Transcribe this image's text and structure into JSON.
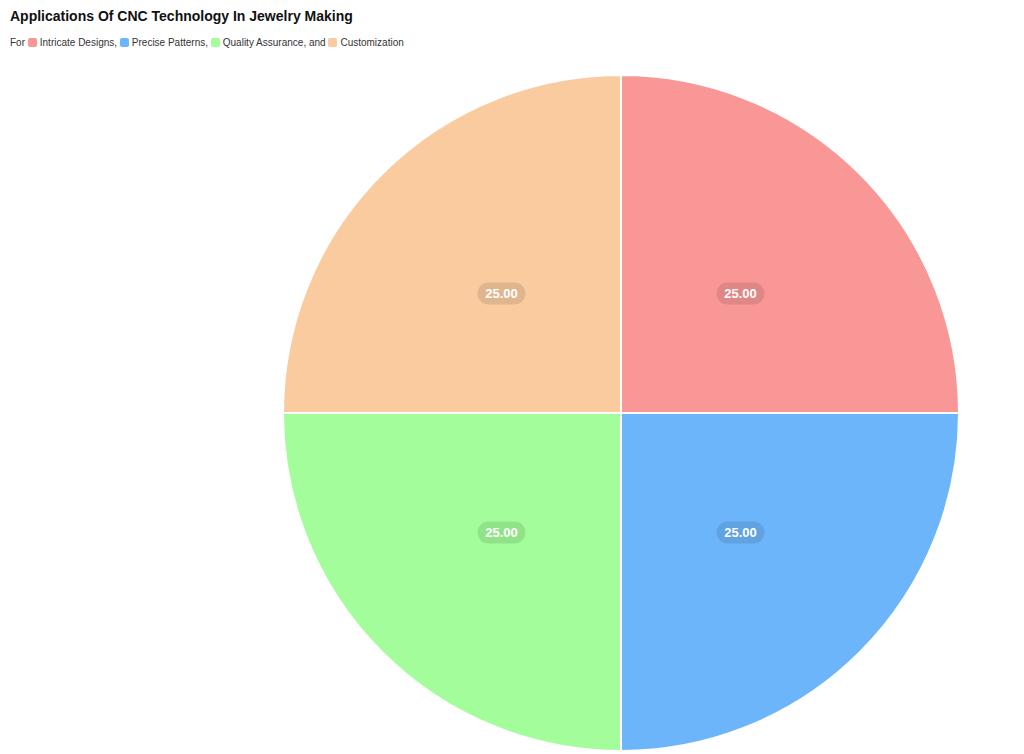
{
  "chart_data": {
    "type": "pie",
    "title": "Applications Of CNC Technology In Jewelry Making",
    "subtitle": "For Intricate Designs, Precise Patterns, Quality Assurance, and Customization",
    "categories": [
      "Intricate Designs",
      "Precise Patterns",
      "Quality Assurance",
      "Customization"
    ],
    "values": [
      25,
      25,
      25,
      25
    ],
    "value_labels": [
      "25.00",
      "25.00",
      "25.00",
      "25.00"
    ],
    "colors": [
      "#F99797",
      "#6DB5FB",
      "#A2FD9A",
      "#F9CB9F"
    ],
    "data_labels": true
  }
}
